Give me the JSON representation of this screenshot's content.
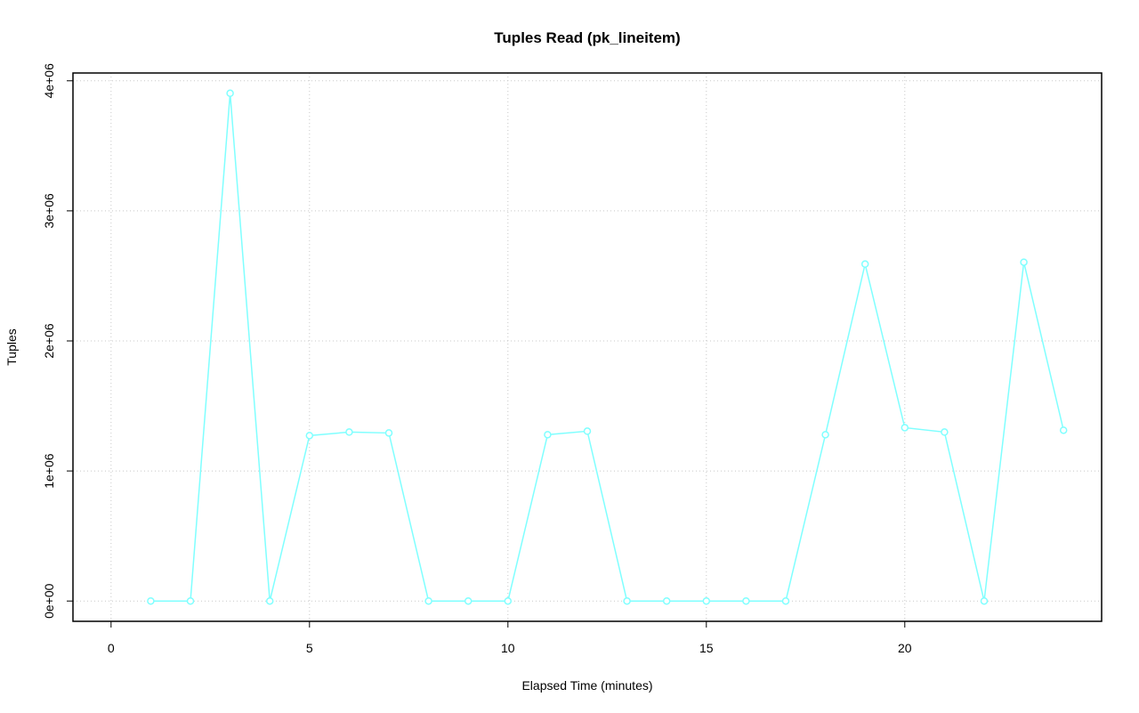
{
  "chart_data": {
    "type": "line",
    "title": "Tuples Read (pk_lineitem)",
    "x_label": "Elapsed Time (minutes)",
    "y_label": "Tuples",
    "x": [
      1,
      2,
      3,
      4,
      5,
      6,
      7,
      8,
      9,
      10,
      11,
      12,
      13,
      14,
      15,
      16,
      17,
      18,
      19,
      20,
      21,
      22,
      23,
      24
    ],
    "series": [
      {
        "color": "#80ffff",
        "values": [
          0,
          0,
          3904000,
          0,
          1272000,
          1299000,
          1292000,
          0,
          0,
          0,
          1279000,
          1306000,
          0,
          0,
          0,
          0,
          0,
          1279000,
          2591000,
          1333000,
          1299000,
          0,
          2605000,
          1313000
        ]
      }
    ],
    "xlim": [
      -0.96,
      24.96
    ],
    "xticks": [
      0,
      5,
      10,
      15,
      20
    ],
    "ylim": [
      -156000,
      4060000
    ],
    "yticks": [
      {
        "value": 0,
        "label": "0e+00"
      },
      {
        "value": 1000000,
        "label": "1e+06"
      },
      {
        "value": 2000000,
        "label": "2e+06"
      },
      {
        "value": 3000000,
        "label": "3e+06"
      },
      {
        "value": 4000000,
        "label": "4e+06"
      }
    ],
    "grid": true
  }
}
